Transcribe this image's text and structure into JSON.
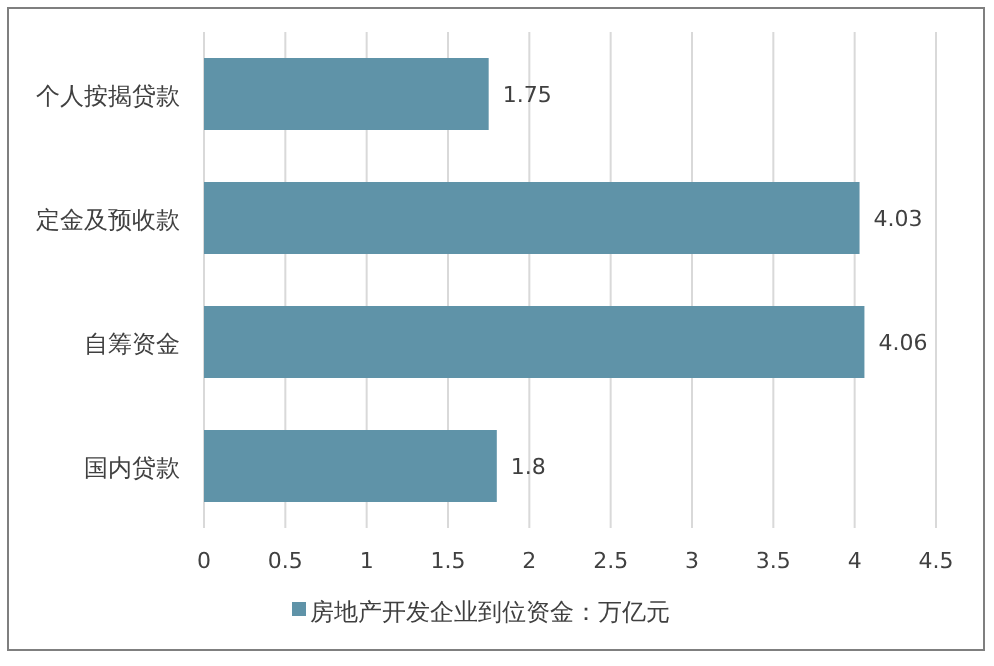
{
  "chart_data": {
    "type": "bar",
    "orientation": "horizontal",
    "categories": [
      "个人按揭贷款",
      "定金及预收款",
      "自筹资金",
      "国内贷款"
    ],
    "series": [
      {
        "name": "房地产开发企业到位资金：万亿元",
        "color": "#5f93a8",
        "values": [
          1.75,
          4.03,
          4.06,
          1.8
        ]
      }
    ],
    "xlim": [
      0,
      4.5
    ],
    "xticks": [
      0,
      0.5,
      1,
      1.5,
      2,
      2.5,
      3,
      3.5,
      4,
      4.5
    ],
    "grid": "x",
    "data_labels": true,
    "legend": "bottom"
  }
}
